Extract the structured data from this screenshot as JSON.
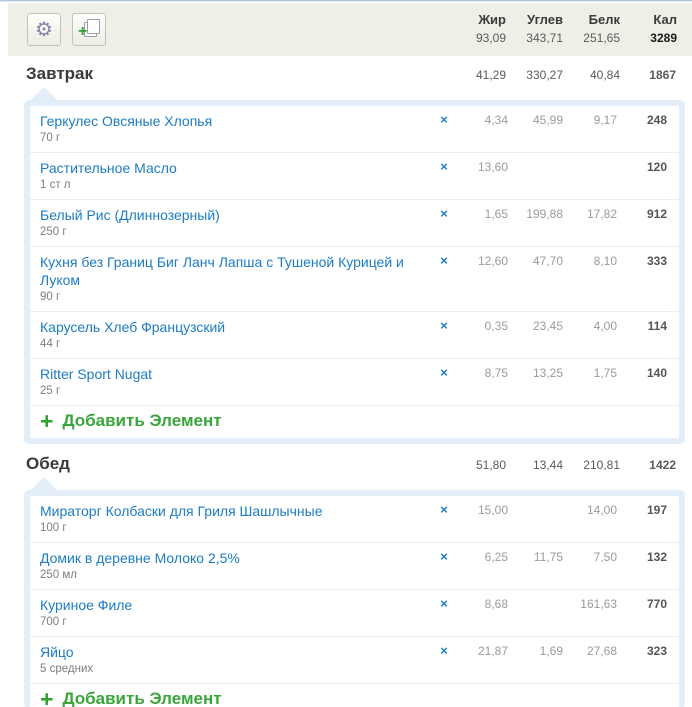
{
  "columns": {
    "fat": "Жир",
    "carbs": "Углев",
    "protein": "Белк",
    "calories": "Кал"
  },
  "day_totals": {
    "fat": "93,09",
    "carbs": "343,71",
    "protein": "251,65",
    "calories": "3289"
  },
  "toolbar": {
    "gear_icon": "⚙",
    "copy_plus": "+"
  },
  "add_item_label": "Добавить Элемент",
  "plus_symbol": "+",
  "delete_symbol": "×",
  "colors": {
    "link_blue": "#1d7cc2",
    "green": "#3aa53a",
    "panel_border": "#e3eef8",
    "header_bg": "#eef0e7"
  },
  "meals": [
    {
      "title": "Завтрак",
      "totals": {
        "fat": "41,29",
        "carbs": "330,27",
        "protein": "40,84",
        "calories": "1867"
      },
      "items": [
        {
          "name": "Геркулес Овсяные Хлопья",
          "portion": "70 г",
          "fat": "4,34",
          "carbs": "45,99",
          "protein": "9,17",
          "calories": "248"
        },
        {
          "name": "Растительное Масло",
          "portion": "1 ст л",
          "fat": "13,60",
          "carbs": "",
          "protein": "",
          "calories": "120"
        },
        {
          "name": "Белый Рис (Длиннозерный)",
          "portion": "250 г",
          "fat": "1,65",
          "carbs": "199,88",
          "protein": "17,82",
          "calories": "912"
        },
        {
          "name": "Кухня без Границ Биг Ланч Лапша с Тушеной Курицей и Луком",
          "portion": "90 г",
          "fat": "12,60",
          "carbs": "47,70",
          "protein": "8,10",
          "calories": "333"
        },
        {
          "name": "Карусель Хлеб Французский",
          "portion": "44 г",
          "fat": "0,35",
          "carbs": "23,45",
          "protein": "4,00",
          "calories": "114"
        },
        {
          "name": "Ritter Sport Nugat",
          "portion": "25 г",
          "fat": "8,75",
          "carbs": "13,25",
          "protein": "1,75",
          "calories": "140"
        }
      ]
    },
    {
      "title": "Обед",
      "totals": {
        "fat": "51,80",
        "carbs": "13,44",
        "protein": "210,81",
        "calories": "1422"
      },
      "items": [
        {
          "name": "Мираторг Колбаски для Гриля Шашлычные",
          "portion": "100 г",
          "fat": "15,00",
          "carbs": "",
          "protein": "14,00",
          "calories": "197"
        },
        {
          "name": "Домик в деревне Молоко 2,5%",
          "portion": "250 мл",
          "fat": "6,25",
          "carbs": "11,75",
          "protein": "7,50",
          "calories": "132"
        },
        {
          "name": "Куриное Филе",
          "portion": "700 г",
          "fat": "8,68",
          "carbs": "",
          "protein": "161,63",
          "calories": "770"
        },
        {
          "name": "Яйцо",
          "portion": "5 средних",
          "fat": "21,87",
          "carbs": "1,69",
          "protein": "27,68",
          "calories": "323"
        }
      ]
    }
  ]
}
